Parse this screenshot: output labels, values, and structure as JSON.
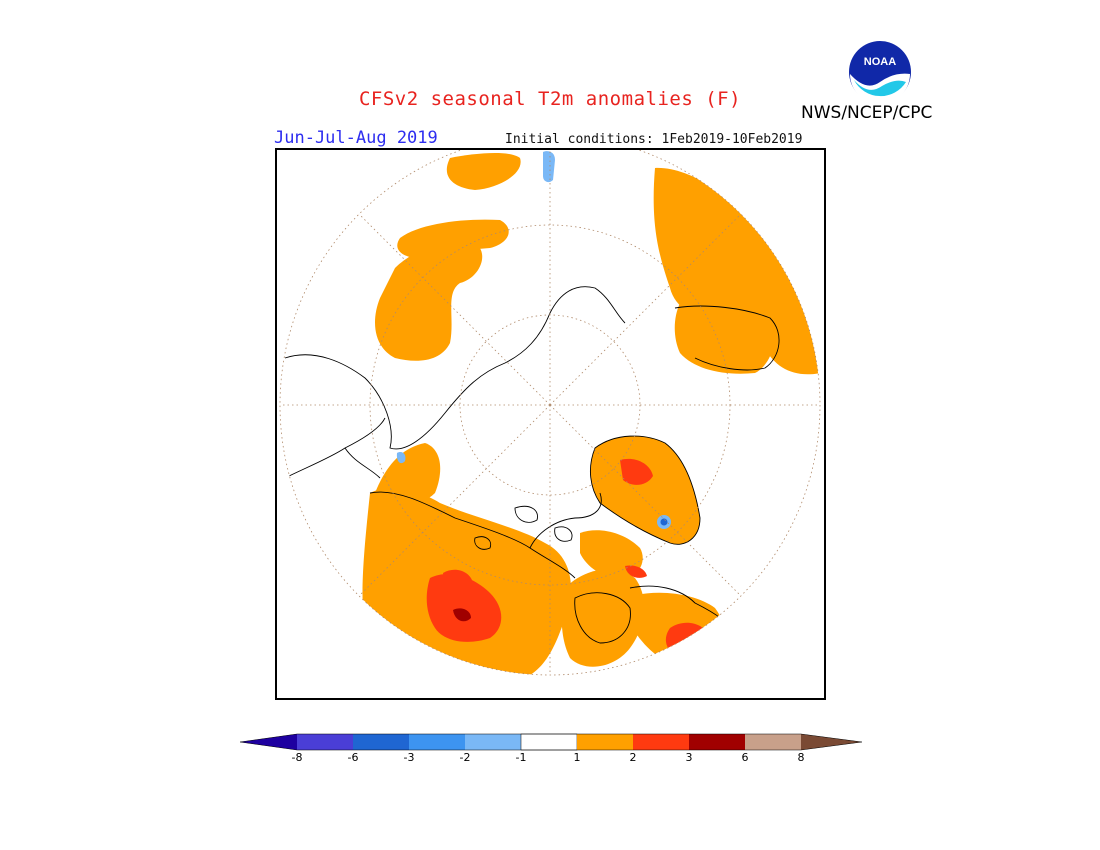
{
  "title": "CFSv2 seasonal T2m anomalies (F)",
  "season": "Jun-Jul-Aug 2019",
  "initial_conditions": "Initial conditions: 1Feb2019-10Feb2019",
  "agency": "NWS/NCEP/CPC",
  "logo_text": "NOAA",
  "legend": {
    "tick_labels": [
      "-8",
      "-6",
      "-3",
      "-2",
      "-1",
      "1",
      "2",
      "3",
      "6",
      "8"
    ],
    "colors": [
      "#1e00a0",
      "#4a3ed6",
      "#1f66d2",
      "#3d94f0",
      "#7ab8f6",
      "#ffffff",
      "#ffa000",
      "#ff3a10",
      "#a00000",
      "#c8a08a",
      "#7a4a34"
    ]
  },
  "map": {
    "projection": "north-polar-stereographic",
    "ocean_fill": "#ffffff",
    "land_outline": "#000000",
    "colors": {
      "positive_1_2": "#ffa000",
      "positive_2_3": "#ff3a10",
      "positive_3_6": "#a00000",
      "negative_1_2": "#7ab8f6",
      "negative_2_3": "#3d94f0",
      "negative_3_6": "#1f66d2"
    }
  }
}
